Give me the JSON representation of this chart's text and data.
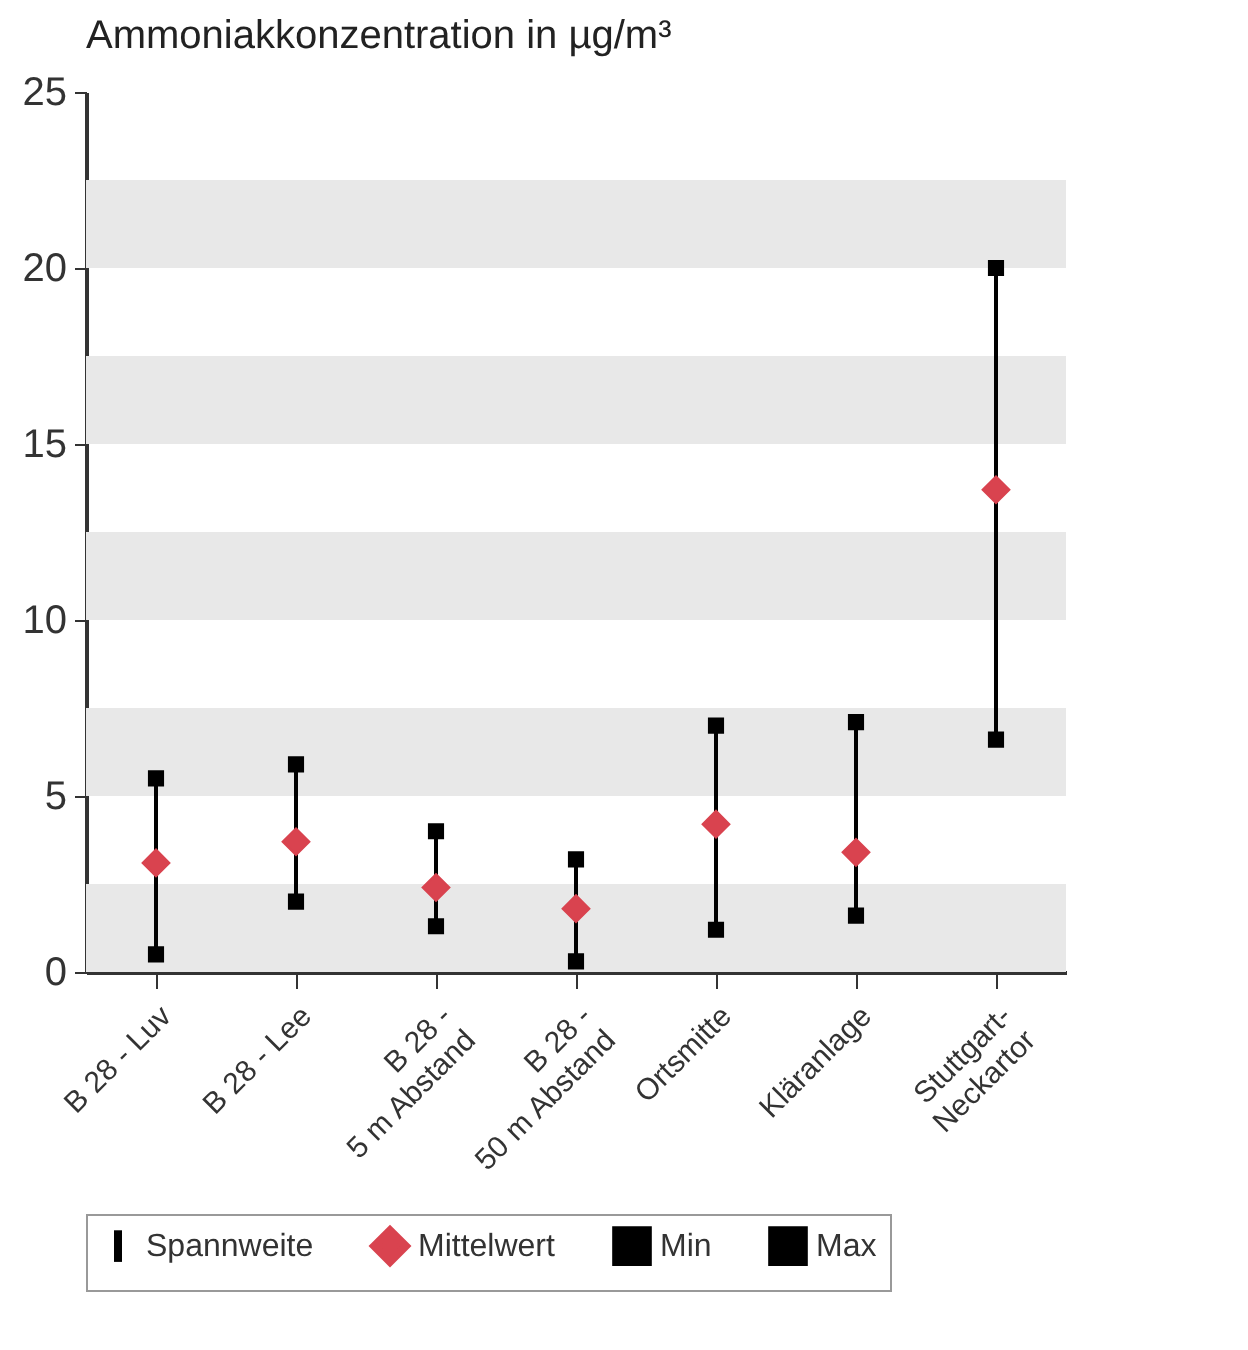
{
  "chart_data": {
    "type": "scatter",
    "title": "Ammoniakkonzentration in µg/m³",
    "categories": [
      "B 28 - Luv",
      "B 28 - Lee",
      "B 28 -\n5 m Abstand",
      "B 28 -\n50 m Abstand",
      "Ortsmitte",
      "Kläranlage",
      "Stuttgart-\nNeckartor"
    ],
    "series": [
      {
        "name": "Spannweite",
        "type": "bar",
        "color": "#000000",
        "base": [
          0.5,
          2.0,
          1.3,
          0.3,
          1.2,
          1.6,
          6.6
        ],
        "values": [
          5.0,
          3.9,
          2.7,
          2.9,
          5.8,
          5.5,
          13.4
        ]
      },
      {
        "name": "Mittelwert",
        "marker": "diamond",
        "color": "#d9434f",
        "values": [
          3.1,
          3.7,
          2.4,
          1.8,
          4.2,
          3.4,
          13.7
        ]
      },
      {
        "name": "Min",
        "marker": "square",
        "color": "#000000",
        "values": [
          0.5,
          2.0,
          1.3,
          0.3,
          1.2,
          1.6,
          6.6
        ]
      },
      {
        "name": "Max",
        "marker": "square",
        "color": "#000000",
        "values": [
          5.5,
          5.9,
          4.0,
          3.2,
          7.0,
          7.1,
          20.0
        ]
      }
    ],
    "ylim": [
      0,
      25
    ],
    "yticks": [
      0,
      5,
      10,
      15,
      20,
      25
    ],
    "bands": [
      {
        "axis": "y",
        "from": 0,
        "to": 2.5,
        "color": "#e8e8e8"
      },
      {
        "axis": "y",
        "from": 5,
        "to": 7.5,
        "color": "#e8e8e8"
      },
      {
        "axis": "y",
        "from": 10,
        "to": 12.5,
        "color": "#e8e8e8"
      },
      {
        "axis": "y",
        "from": 15,
        "to": 17.5,
        "color": "#e8e8e8"
      },
      {
        "axis": "y",
        "from": 20,
        "to": 22.5,
        "color": "#e8e8e8"
      }
    ],
    "legend": "bottom"
  }
}
